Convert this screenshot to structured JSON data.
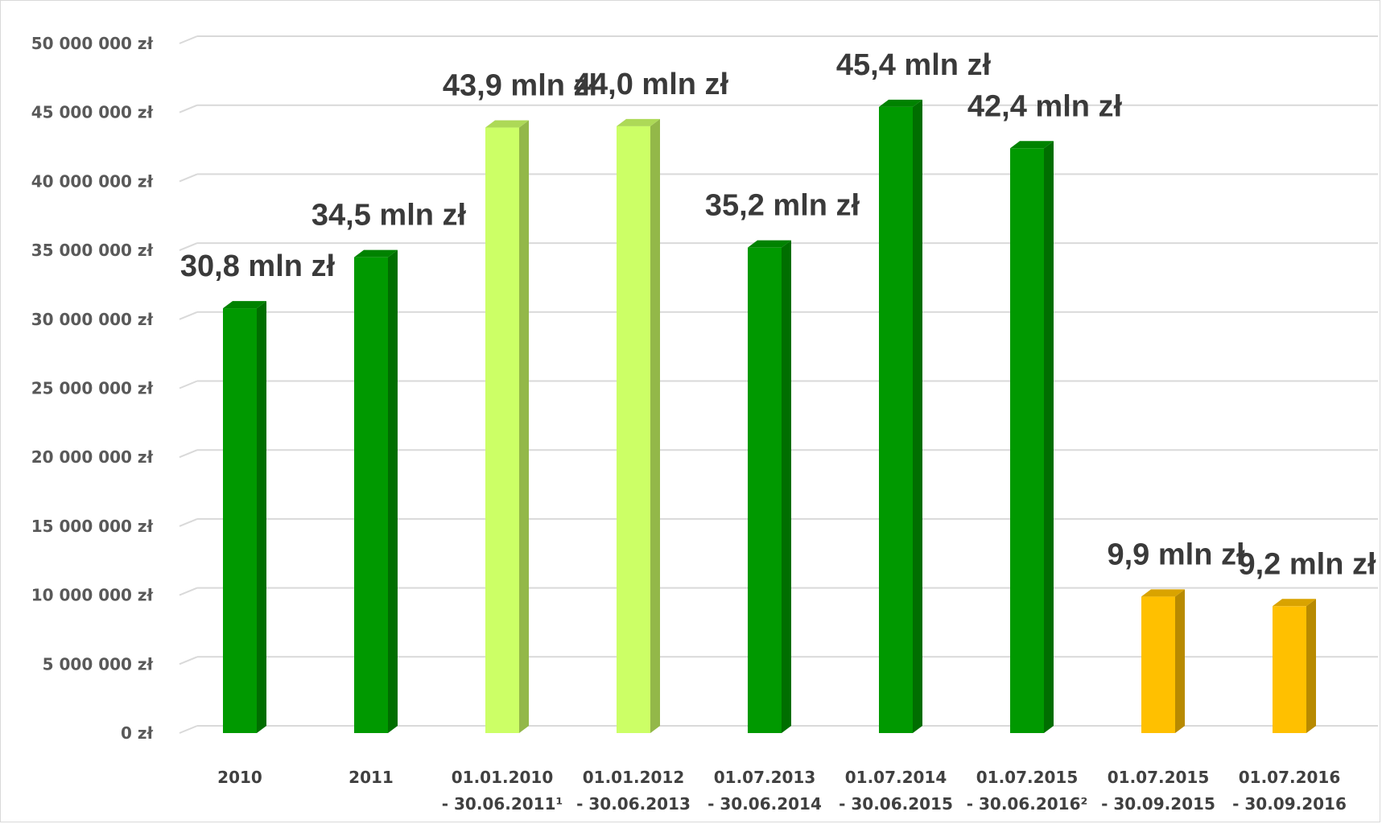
{
  "chart_data": {
    "type": "bar",
    "title": "",
    "xlabel": "",
    "ylabel": "",
    "ylim": [
      0,
      50000000
    ],
    "grid": true,
    "legend": "none",
    "y_ticks": [
      "0 zł",
      "5 000 000 zł",
      "10 000 000 zł",
      "15 000 000 zł",
      "20 000 000 zł",
      "25 000 000 zł",
      "30 000 000 zł",
      "35 000 000 zł",
      "40 000 000 zł",
      "45 000 000 zł",
      "50 000 000 zł"
    ],
    "categories": [
      {
        "line1": "2010",
        "line2": ""
      },
      {
        "line1": "2011",
        "line2": ""
      },
      {
        "line1": "01.01.2010",
        "line2": "- 30.06.2011¹"
      },
      {
        "line1": "01.01.2012",
        "line2": "- 30.06.2013"
      },
      {
        "line1": "01.07.2013",
        "line2": "- 30.06.2014"
      },
      {
        "line1": "01.07.2014",
        "line2": "- 30.06.2015"
      },
      {
        "line1": "01.07.2015",
        "line2": "- 30.06.2016²"
      },
      {
        "line1": "01.07.2015",
        "line2": "- 30.09.2015"
      },
      {
        "line1": "01.07.2016",
        "line2": "- 30.09.2016"
      }
    ],
    "values": [
      30800000,
      34500000,
      43900000,
      44000000,
      35200000,
      45400000,
      42400000,
      9900000,
      9200000
    ],
    "data_labels": [
      "30,8 mln zł",
      "34,5 mln zł",
      "43,9 mln zł",
      "44,0 mln zł",
      "35,2 mln zł",
      "45,4 mln zł",
      "42,4 mln zł",
      "9,9 mln zł",
      "9,2 mln zł"
    ],
    "bar_colors": [
      "#009900",
      "#009900",
      "#ccff66",
      "#ccff66",
      "#009900",
      "#009900",
      "#009900",
      "#ffc000",
      "#ffc000"
    ]
  }
}
